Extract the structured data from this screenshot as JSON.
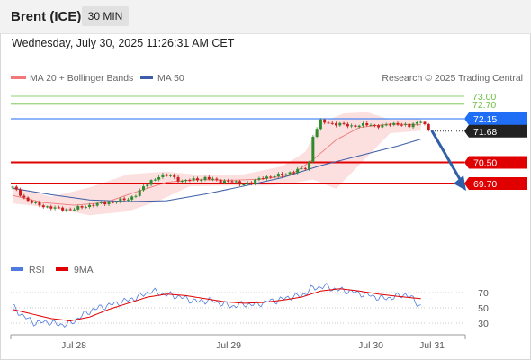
{
  "header": {
    "title": "Brent (ICE)",
    "timeframe": "30 MIN"
  },
  "datetime": "Wednesday, July 30, 2025 11:26:31 AM CET",
  "credit": "Research © 2025 Trading Central",
  "colors": {
    "resistance": "#6abf40",
    "support": "#e00000",
    "pivot": "#1f6ef5",
    "ma50": "#3d5ea6",
    "ma20": "#f07878",
    "band": "#fbd8d8",
    "arrow": "#2f5fa6",
    "bull": "#2e8b2e",
    "bear": "#cc1c1c",
    "rsi": "#4f7be0",
    "rsi_ma": "#e00000"
  },
  "chart_data": [
    {
      "type": "candlestick",
      "legend": [
        {
          "label": "MA 20 + Bollinger Bands",
          "color": "#f07878"
        },
        {
          "label": "MA 50",
          "color": "#3d5ea6"
        }
      ],
      "x_tick_labels": [
        "Jul 28",
        "Jul 29",
        "Jul 30",
        "Jul 31"
      ],
      "y_range": [
        68.3,
        73.6
      ],
      "levels": [
        {
          "label": "73.00",
          "value": 73.0,
          "kind": "resistance"
        },
        {
          "label": "72.70",
          "value": 72.7,
          "kind": "resistance"
        },
        {
          "label": "72.15",
          "value": 72.15,
          "kind": "pivot"
        },
        {
          "label": "71.68",
          "value": 71.68,
          "kind": "last"
        },
        {
          "label": "70.50",
          "value": 70.5,
          "kind": "support"
        },
        {
          "label": "69.70",
          "value": 69.7,
          "kind": "support"
        }
      ],
      "anchors": [
        [
          0,
          69.55
        ],
        [
          2,
          69.3
        ],
        [
          4,
          69.05
        ],
        [
          6,
          68.92
        ],
        [
          9,
          68.82
        ],
        [
          12,
          68.74
        ],
        [
          15,
          68.72
        ],
        [
          18,
          68.8
        ],
        [
          21,
          68.92
        ],
        [
          24,
          68.95
        ],
        [
          27,
          69.05
        ],
        [
          30,
          69.1
        ],
        [
          32,
          69.3
        ],
        [
          34,
          69.55
        ],
        [
          36,
          69.8
        ],
        [
          38,
          69.98
        ],
        [
          41,
          70.0
        ],
        [
          44,
          69.78
        ],
        [
          47,
          69.85
        ],
        [
          50,
          69.9
        ],
        [
          53,
          69.82
        ],
        [
          56,
          69.78
        ],
        [
          59,
          69.7
        ],
        [
          62,
          69.72
        ],
        [
          65,
          69.95
        ],
        [
          67,
          69.95
        ],
        [
          69,
          70.0
        ],
        [
          71,
          70.08
        ],
        [
          73,
          70.15
        ],
        [
          76,
          70.3
        ],
        [
          77,
          70.5
        ],
        [
          78,
          71.5
        ],
        [
          80,
          72.05
        ],
        [
          84,
          71.95
        ],
        [
          88,
          71.88
        ],
        [
          92,
          71.92
        ],
        [
          96,
          71.88
        ],
        [
          100,
          71.98
        ],
        [
          103,
          71.85
        ],
        [
          106,
          72.1
        ],
        [
          108,
          71.72
        ]
      ],
      "ma50_points": [
        [
          0,
          69.52
        ],
        [
          10,
          69.28
        ],
        [
          20,
          69.08
        ],
        [
          30,
          69.02
        ],
        [
          40,
          69.05
        ],
        [
          50,
          69.3
        ],
        [
          60,
          69.6
        ],
        [
          70,
          69.92
        ],
        [
          80,
          70.38
        ],
        [
          90,
          70.75
        ],
        [
          100,
          71.12
        ],
        [
          106,
          71.38
        ]
      ],
      "ma20_points": [
        [
          0,
          69.25
        ],
        [
          8,
          68.98
        ],
        [
          16,
          68.88
        ],
        [
          24,
          68.98
        ],
        [
          32,
          69.38
        ],
        [
          40,
          69.75
        ],
        [
          48,
          69.85
        ],
        [
          56,
          69.82
        ],
        [
          64,
          69.86
        ],
        [
          72,
          70.0
        ],
        [
          78,
          70.6
        ],
        [
          84,
          71.35
        ],
        [
          90,
          71.82
        ],
        [
          98,
          71.95
        ],
        [
          106,
          71.92
        ]
      ],
      "band_upper": [
        [
          0,
          69.6
        ],
        [
          10,
          69.2
        ],
        [
          20,
          69.55
        ],
        [
          30,
          70.05
        ],
        [
          40,
          70.15
        ],
        [
          50,
          70.0
        ],
        [
          60,
          70.05
        ],
        [
          70,
          70.35
        ],
        [
          76,
          70.9
        ],
        [
          80,
          72.0
        ],
        [
          86,
          72.35
        ],
        [
          92,
          72.4
        ],
        [
          98,
          72.12
        ],
        [
          106,
          72.15
        ]
      ],
      "band_lower": [
        [
          0,
          68.95
        ],
        [
          10,
          68.78
        ],
        [
          20,
          68.5
        ],
        [
          30,
          68.65
        ],
        [
          38,
          69.05
        ],
        [
          46,
          69.6
        ],
        [
          56,
          69.62
        ],
        [
          66,
          69.62
        ],
        [
          72,
          69.7
        ],
        [
          78,
          69.85
        ],
        [
          84,
          69.5
        ],
        [
          90,
          70.4
        ],
        [
          98,
          71.6
        ],
        [
          106,
          71.7
        ]
      ]
    },
    {
      "type": "line",
      "legend": [
        {
          "label": "RSI",
          "color": "#4f7be0"
        },
        {
          "label": "9MA",
          "color": "#e00000"
        }
      ],
      "y_ticks": [
        70,
        50,
        30
      ],
      "y_range": [
        20,
        85
      ],
      "rsi_points": [
        [
          0,
          52
        ],
        [
          3,
          38
        ],
        [
          6,
          30
        ],
        [
          9,
          32
        ],
        [
          12,
          28
        ],
        [
          15,
          29
        ],
        [
          18,
          40
        ],
        [
          21,
          48
        ],
        [
          24,
          52
        ],
        [
          27,
          56
        ],
        [
          30,
          60
        ],
        [
          33,
          65
        ],
        [
          36,
          72
        ],
        [
          39,
          68
        ],
        [
          42,
          66
        ],
        [
          45,
          62
        ],
        [
          48,
          58
        ],
        [
          51,
          60
        ],
        [
          54,
          56
        ],
        [
          57,
          52
        ],
        [
          60,
          55
        ],
        [
          63,
          54
        ],
        [
          66,
          58
        ],
        [
          69,
          60
        ],
        [
          72,
          64
        ],
        [
          75,
          66
        ],
        [
          78,
          76
        ],
        [
          81,
          78
        ],
        [
          84,
          74
        ],
        [
          87,
          72
        ],
        [
          90,
          69
        ],
        [
          93,
          66
        ],
        [
          96,
          62
        ],
        [
          99,
          64
        ],
        [
          102,
          68
        ],
        [
          104,
          61
        ],
        [
          106,
          52
        ]
      ],
      "ma_points": [
        [
          0,
          48
        ],
        [
          5,
          42
        ],
        [
          10,
          36
        ],
        [
          15,
          33
        ],
        [
          20,
          38
        ],
        [
          25,
          48
        ],
        [
          30,
          56
        ],
        [
          35,
          64
        ],
        [
          40,
          68
        ],
        [
          45,
          66
        ],
        [
          50,
          62
        ],
        [
          55,
          58
        ],
        [
          60,
          56
        ],
        [
          65,
          57
        ],
        [
          70,
          60
        ],
        [
          75,
          64
        ],
        [
          80,
          72
        ],
        [
          85,
          75
        ],
        [
          90,
          72
        ],
        [
          95,
          68
        ],
        [
          100,
          65
        ],
        [
          106,
          62
        ]
      ]
    }
  ]
}
